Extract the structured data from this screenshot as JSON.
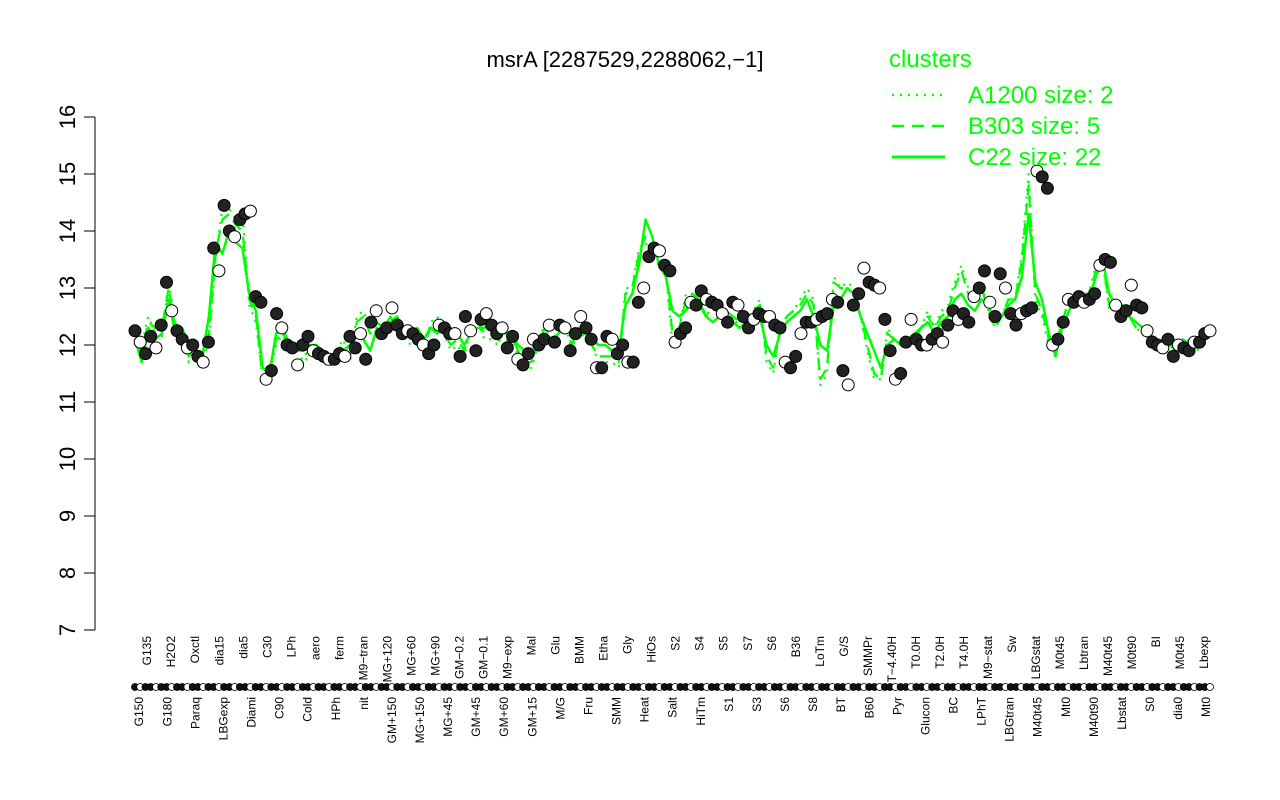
{
  "chart_data": {
    "type": "line",
    "title": "msrA [2287529,2288062,−1]",
    "xlabel": "",
    "ylabel": "",
    "ylim": [
      7,
      16
    ],
    "yticks": [
      7,
      8,
      9,
      10,
      11,
      12,
      13,
      14,
      15,
      16
    ],
    "x_labels_top": [
      "G135",
      "H2O2",
      "Oxctl",
      "dia15",
      "dia5",
      "C30",
      "LPh",
      "aero",
      "ferm",
      "M9−tran",
      "MG+120",
      "MG+60",
      "MG+90",
      "GM−0.2",
      "GM−0.1",
      "M9−exp",
      "Mal",
      "Glu",
      "BMM",
      "Etha",
      "Gly",
      "HiOs",
      "S2",
      "S4",
      "S5",
      "S7",
      "S6",
      "B36",
      "LoTm",
      "G/S",
      "SMMPr",
      "T−4.40H",
      "T0.0H",
      "T2.0H",
      "T4.0H",
      "M9−stat",
      "Sw",
      "LBGstat",
      "M0t45",
      "Lbtran",
      "M40t45",
      "M0t90",
      "BI",
      "M0t45",
      "Lbexp"
    ],
    "x_labels_bottom": [
      "G150",
      "G180",
      "Paraq",
      "LBGexp",
      "Diami",
      "C90",
      "Cold",
      "HPh",
      "nit",
      "GM+150",
      "MG+150",
      "MG+45",
      "GM+45",
      "GM+60",
      "GM+15",
      "M/G",
      "Fru",
      "SMM",
      "Heat",
      "Salt",
      "HiTm",
      "S1",
      "S3",
      "S6",
      "S8",
      "BT",
      "B60",
      "Pyr",
      "Glucon",
      "BC",
      "LPhT",
      "LBGtran",
      "M40t45",
      "Mt0",
      "M40t90",
      "Lbstat",
      "S0",
      "dia0",
      "Mt0"
    ],
    "series": [
      {
        "name": "C22 size: 22",
        "style": "solid",
        "values": [
          12.1,
          11.7,
          12.3,
          12.1,
          12.2,
          12.8,
          12.2,
          12.3,
          12.0,
          11.9,
          11.8,
          12.5,
          13.8,
          13.6,
          14.0,
          13.8,
          13.7,
          12.9,
          12.6,
          11.6,
          11.5,
          12.2,
          12.3,
          12.0,
          12.0,
          11.9,
          12.0,
          12.0,
          11.9,
          11.8,
          11.8,
          11.9,
          12.0,
          12.2,
          12.1,
          11.9,
          12.3,
          12.2,
          12.4,
          12.5,
          12.3,
          12.2,
          12.3,
          12.1,
          12.3,
          12.2,
          12.3,
          12.2,
          12.2,
          12.0,
          12.2,
          12.3,
          12.3,
          12.4,
          12.3,
          12.2,
          12.2,
          12.0,
          11.9,
          11.8,
          12.0,
          12.1,
          12.0,
          12.2,
          12.3,
          12.2,
          12.3,
          12.2,
          12.1,
          12.0,
          12.0,
          11.9,
          11.9,
          12.7,
          12.9,
          13.4,
          14.2,
          13.9,
          13.4,
          13.2,
          12.6,
          12.5,
          12.6,
          12.8,
          12.7,
          12.5,
          12.4,
          12.5,
          12.5,
          12.4,
          12.3,
          12.4,
          12.5,
          12.5,
          12.0,
          11.8,
          12.2,
          12.4,
          12.5,
          12.6,
          12.8,
          12.5,
          12.0,
          11.9,
          12.7,
          12.8,
          13.0,
          12.9,
          12.5,
          12.2,
          11.9,
          11.6,
          12.0,
          12.1,
          12.0,
          12.1,
          12.2,
          12.3,
          12.4,
          12.2,
          12.4,
          12.5,
          12.8,
          12.9,
          12.7,
          12.6,
          12.8,
          12.7,
          12.4,
          12.5,
          12.7,
          12.8,
          13.2,
          14.3,
          13.1,
          12.8,
          12.2,
          11.8,
          12.3,
          12.6,
          12.8,
          12.9,
          12.8,
          13.2,
          13.5,
          12.9,
          12.7,
          12.6,
          12.5,
          12.4,
          12.3,
          12.2,
          12.1,
          12.0,
          12.0,
          11.9,
          12.0,
          12.1,
          12.0,
          12.2,
          12.3
        ]
      },
      {
        "name": "B303 size: 5",
        "style": "dashed",
        "values": [
          12.0,
          11.9,
          12.4,
          12.3,
          12.3,
          13.0,
          12.3,
          12.2,
          11.8,
          11.9,
          11.8,
          12.2,
          13.6,
          14.2,
          14.3,
          14.1,
          14.0,
          12.8,
          12.5,
          11.4,
          11.5,
          12.1,
          12.2,
          11.9,
          12.0,
          11.8,
          11.9,
          11.9,
          11.7,
          11.7,
          11.9,
          12.0,
          11.8,
          12.4,
          12.5,
          12.2,
          12.4,
          12.3,
          12.5,
          12.3,
          12.2,
          12.1,
          12.1,
          12.0,
          12.3,
          12.4,
          12.2,
          12.0,
          12.1,
          11.9,
          12.3,
          12.4,
          12.2,
          12.2,
          12.1,
          12.0,
          12.2,
          11.9,
          11.7,
          11.7,
          12.0,
          12.3,
          12.1,
          12.2,
          12.4,
          12.0,
          12.3,
          12.1,
          12.0,
          11.8,
          11.8,
          11.8,
          11.7,
          12.9,
          13.0,
          13.6,
          13.9,
          13.6,
          13.4,
          13.3,
          12.2,
          12.3,
          12.8,
          12.9,
          12.8,
          12.5,
          12.7,
          12.7,
          12.6,
          12.5,
          12.4,
          12.4,
          12.6,
          12.7,
          11.8,
          11.6,
          12.3,
          12.5,
          12.6,
          12.7,
          12.9,
          12.7,
          11.4,
          11.6,
          13.1,
          13.0,
          13.0,
          12.9,
          12.5,
          12.0,
          11.5,
          11.4,
          12.2,
          12.1,
          12.0,
          12.0,
          12.1,
          12.3,
          12.5,
          12.3,
          12.5,
          12.6,
          13.0,
          13.3,
          12.9,
          12.7,
          13.0,
          12.6,
          12.3,
          12.5,
          12.8,
          12.8,
          13.5,
          14.8,
          12.9,
          12.6,
          12.1,
          12.0,
          12.4,
          12.8,
          12.8,
          12.9,
          12.9,
          13.3,
          13.5,
          12.7,
          12.6,
          12.7,
          12.5,
          12.3,
          12.2,
          12.1,
          12.0,
          12.0,
          11.9,
          11.8,
          12.1,
          12.0,
          11.9,
          12.1,
          12.2
        ]
      },
      {
        "name": "A1200 size: 2",
        "style": "dotted",
        "values": [
          12.2,
          12.0,
          12.5,
          12.2,
          12.1,
          13.1,
          12.4,
          12.1,
          11.7,
          11.8,
          11.8,
          12.0,
          13.5,
          14.4,
          14.4,
          14.2,
          14.3,
          12.7,
          12.4,
          11.4,
          11.5,
          12.0,
          12.2,
          11.9,
          12.0,
          11.7,
          11.8,
          11.8,
          11.7,
          11.6,
          11.9,
          12.1,
          11.7,
          12.5,
          12.6,
          12.3,
          12.4,
          12.2,
          12.5,
          12.3,
          12.2,
          12.0,
          12.0,
          11.9,
          12.4,
          12.5,
          12.2,
          11.9,
          12.0,
          11.8,
          12.3,
          12.4,
          12.1,
          12.1,
          12.0,
          11.9,
          12.2,
          11.8,
          11.6,
          11.6,
          12.0,
          12.4,
          12.0,
          12.2,
          12.4,
          11.9,
          12.3,
          12.1,
          12.0,
          11.7,
          11.7,
          11.7,
          11.6,
          13.0,
          13.0,
          13.7,
          13.8,
          13.5,
          13.4,
          13.3,
          12.0,
          12.3,
          12.9,
          12.9,
          12.8,
          12.5,
          12.7,
          12.7,
          12.6,
          12.5,
          12.3,
          12.4,
          12.6,
          12.8,
          11.7,
          11.5,
          12.3,
          12.5,
          12.6,
          12.8,
          13.0,
          12.8,
          11.3,
          11.5,
          13.2,
          13.0,
          13.1,
          13.0,
          12.5,
          11.9,
          11.4,
          11.4,
          12.3,
          12.1,
          12.0,
          12.0,
          12.1,
          12.3,
          12.6,
          12.3,
          12.6,
          12.7,
          13.1,
          13.4,
          13.0,
          12.7,
          13.1,
          12.6,
          12.3,
          12.5,
          12.8,
          12.8,
          13.6,
          15.0,
          12.8,
          12.5,
          12.0,
          12.0,
          12.4,
          12.8,
          12.8,
          12.9,
          12.9,
          13.4,
          13.5,
          12.6,
          12.6,
          12.7,
          12.5,
          12.3,
          12.2,
          12.0,
          12.0,
          12.0,
          11.9,
          11.8,
          12.1,
          12.0,
          11.9,
          12.0,
          12.2
        ]
      }
    ],
    "points": [
      12.25,
      12.05,
      11.85,
      12.15,
      11.95,
      12.35,
      13.1,
      12.6,
      12.25,
      12.1,
      11.95,
      12.0,
      11.8,
      11.7,
      12.05,
      13.7,
      13.3,
      14.45,
      14.0,
      13.9,
      14.2,
      14.3,
      14.35,
      12.85,
      12.75,
      11.4,
      11.55,
      12.55,
      12.3,
      12.0,
      11.95,
      11.65,
      12.0,
      12.15,
      11.9,
      11.85,
      11.8,
      11.75,
      11.75,
      11.85,
      11.8,
      12.15,
      11.95,
      12.2,
      11.75,
      12.4,
      12.6,
      12.2,
      12.3,
      12.65,
      12.35,
      12.2,
      12.25,
      12.2,
      12.1,
      12.0,
      11.85,
      12.0,
      12.35,
      12.3,
      12.2,
      12.2,
      11.8,
      12.5,
      12.25,
      11.9,
      12.45,
      12.55,
      12.35,
      12.2,
      12.3,
      11.95,
      12.15,
      11.75,
      11.65,
      11.85,
      12.1,
      12.0,
      12.1,
      12.35,
      12.05,
      12.35,
      12.3,
      11.9,
      12.2,
      12.5,
      12.3,
      12.1,
      11.6,
      11.6,
      12.15,
      12.1,
      11.85,
      12.0,
      11.7,
      11.7,
      12.75,
      13.0,
      13.55,
      13.7,
      13.65,
      13.4,
      13.3,
      12.05,
      12.2,
      12.3,
      12.75,
      12.7,
      12.95,
      12.8,
      12.75,
      12.7,
      12.55,
      12.4,
      12.75,
      12.7,
      12.5,
      12.3,
      12.45,
      12.55,
      12.5,
      12.5,
      12.35,
      12.3,
      11.7,
      11.6,
      11.8,
      12.2,
      12.4,
      12.4,
      12.45,
      12.5,
      12.55,
      12.8,
      12.75,
      11.55,
      11.3,
      12.7,
      12.9,
      13.35,
      13.1,
      13.05,
      13.0,
      12.45,
      11.9,
      11.4,
      11.5,
      12.05,
      12.45,
      12.1,
      12.0,
      12.0,
      12.1,
      12.2,
      12.05,
      12.35,
      12.6,
      12.45,
      12.55,
      12.4,
      12.85,
      13.0,
      13.3,
      12.75,
      12.5,
      13.25,
      13.0,
      12.55,
      12.35,
      12.55,
      12.6,
      12.65,
      15.05,
      14.95,
      14.75,
      12.0,
      12.1,
      12.4,
      12.8,
      12.75,
      12.85,
      12.75,
      12.8,
      12.9,
      13.4,
      13.5,
      13.45,
      12.7,
      12.5,
      12.6,
      13.05,
      12.7,
      12.65,
      12.25,
      12.05,
      12.0,
      11.95,
      12.1,
      11.8,
      12.0,
      11.95,
      11.9,
      12.05,
      12.05,
      12.2,
      12.25
    ]
  },
  "legend": {
    "title": "clusters",
    "placement": "top-right",
    "color": "#00ff00",
    "items": [
      {
        "label": "A1200 size: 2",
        "style": "dotted"
      },
      {
        "label": "B303 size: 5",
        "style": "dashed"
      },
      {
        "label": "C22 size: 22",
        "style": "solid"
      }
    ]
  },
  "colors": {
    "series": "#00ff00",
    "points_fill_dark": "#222222",
    "points_fill_light": "#ffffff",
    "axis": "#000000"
  }
}
